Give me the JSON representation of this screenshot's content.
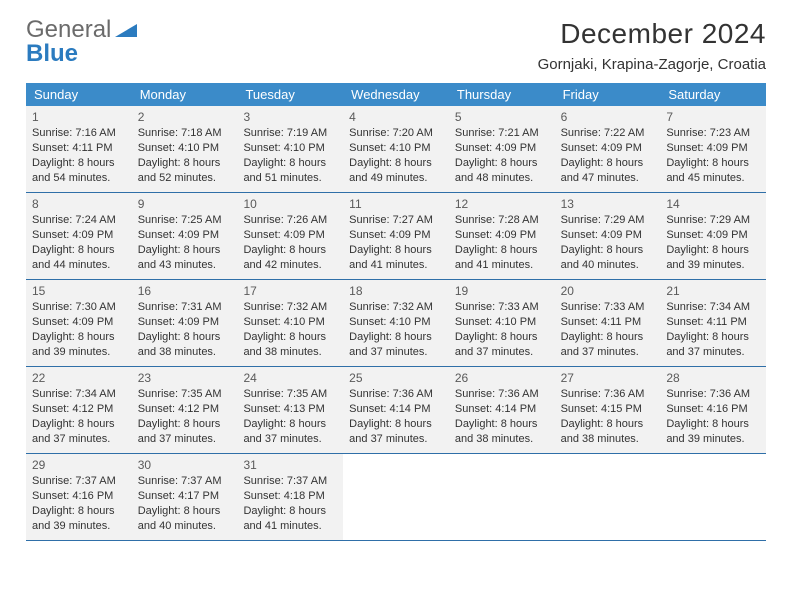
{
  "logo": {
    "part1": "General",
    "part2": "Blue"
  },
  "title": "December 2024",
  "location": "Gornjaki, Krapina-Zagorje, Croatia",
  "colors": {
    "header_bg": "#3b8bc9",
    "header_text": "#ffffff",
    "row_border": "#2f6fa8",
    "cell_bg": "#f2f2f2",
    "page_bg": "#ffffff",
    "logo_blue": "#2b7bbf",
    "logo_gray": "#6b6b6b"
  },
  "typography": {
    "title_fontsize": 28,
    "location_fontsize": 15,
    "weekday_fontsize": 13,
    "daynum_fontsize": 12,
    "body_fontsize": 11
  },
  "weekdays": [
    "Sunday",
    "Monday",
    "Tuesday",
    "Wednesday",
    "Thursday",
    "Friday",
    "Saturday"
  ],
  "weeks": [
    [
      {
        "n": "1",
        "sr": "Sunrise: 7:16 AM",
        "ss": "Sunset: 4:11 PM",
        "d1": "Daylight: 8 hours",
        "d2": "and 54 minutes."
      },
      {
        "n": "2",
        "sr": "Sunrise: 7:18 AM",
        "ss": "Sunset: 4:10 PM",
        "d1": "Daylight: 8 hours",
        "d2": "and 52 minutes."
      },
      {
        "n": "3",
        "sr": "Sunrise: 7:19 AM",
        "ss": "Sunset: 4:10 PM",
        "d1": "Daylight: 8 hours",
        "d2": "and 51 minutes."
      },
      {
        "n": "4",
        "sr": "Sunrise: 7:20 AM",
        "ss": "Sunset: 4:10 PM",
        "d1": "Daylight: 8 hours",
        "d2": "and 49 minutes."
      },
      {
        "n": "5",
        "sr": "Sunrise: 7:21 AM",
        "ss": "Sunset: 4:09 PM",
        "d1": "Daylight: 8 hours",
        "d2": "and 48 minutes."
      },
      {
        "n": "6",
        "sr": "Sunrise: 7:22 AM",
        "ss": "Sunset: 4:09 PM",
        "d1": "Daylight: 8 hours",
        "d2": "and 47 minutes."
      },
      {
        "n": "7",
        "sr": "Sunrise: 7:23 AM",
        "ss": "Sunset: 4:09 PM",
        "d1": "Daylight: 8 hours",
        "d2": "and 45 minutes."
      }
    ],
    [
      {
        "n": "8",
        "sr": "Sunrise: 7:24 AM",
        "ss": "Sunset: 4:09 PM",
        "d1": "Daylight: 8 hours",
        "d2": "and 44 minutes."
      },
      {
        "n": "9",
        "sr": "Sunrise: 7:25 AM",
        "ss": "Sunset: 4:09 PM",
        "d1": "Daylight: 8 hours",
        "d2": "and 43 minutes."
      },
      {
        "n": "10",
        "sr": "Sunrise: 7:26 AM",
        "ss": "Sunset: 4:09 PM",
        "d1": "Daylight: 8 hours",
        "d2": "and 42 minutes."
      },
      {
        "n": "11",
        "sr": "Sunrise: 7:27 AM",
        "ss": "Sunset: 4:09 PM",
        "d1": "Daylight: 8 hours",
        "d2": "and 41 minutes."
      },
      {
        "n": "12",
        "sr": "Sunrise: 7:28 AM",
        "ss": "Sunset: 4:09 PM",
        "d1": "Daylight: 8 hours",
        "d2": "and 41 minutes."
      },
      {
        "n": "13",
        "sr": "Sunrise: 7:29 AM",
        "ss": "Sunset: 4:09 PM",
        "d1": "Daylight: 8 hours",
        "d2": "and 40 minutes."
      },
      {
        "n": "14",
        "sr": "Sunrise: 7:29 AM",
        "ss": "Sunset: 4:09 PM",
        "d1": "Daylight: 8 hours",
        "d2": "and 39 minutes."
      }
    ],
    [
      {
        "n": "15",
        "sr": "Sunrise: 7:30 AM",
        "ss": "Sunset: 4:09 PM",
        "d1": "Daylight: 8 hours",
        "d2": "and 39 minutes."
      },
      {
        "n": "16",
        "sr": "Sunrise: 7:31 AM",
        "ss": "Sunset: 4:09 PM",
        "d1": "Daylight: 8 hours",
        "d2": "and 38 minutes."
      },
      {
        "n": "17",
        "sr": "Sunrise: 7:32 AM",
        "ss": "Sunset: 4:10 PM",
        "d1": "Daylight: 8 hours",
        "d2": "and 38 minutes."
      },
      {
        "n": "18",
        "sr": "Sunrise: 7:32 AM",
        "ss": "Sunset: 4:10 PM",
        "d1": "Daylight: 8 hours",
        "d2": "and 37 minutes."
      },
      {
        "n": "19",
        "sr": "Sunrise: 7:33 AM",
        "ss": "Sunset: 4:10 PM",
        "d1": "Daylight: 8 hours",
        "d2": "and 37 minutes."
      },
      {
        "n": "20",
        "sr": "Sunrise: 7:33 AM",
        "ss": "Sunset: 4:11 PM",
        "d1": "Daylight: 8 hours",
        "d2": "and 37 minutes."
      },
      {
        "n": "21",
        "sr": "Sunrise: 7:34 AM",
        "ss": "Sunset: 4:11 PM",
        "d1": "Daylight: 8 hours",
        "d2": "and 37 minutes."
      }
    ],
    [
      {
        "n": "22",
        "sr": "Sunrise: 7:34 AM",
        "ss": "Sunset: 4:12 PM",
        "d1": "Daylight: 8 hours",
        "d2": "and 37 minutes."
      },
      {
        "n": "23",
        "sr": "Sunrise: 7:35 AM",
        "ss": "Sunset: 4:12 PM",
        "d1": "Daylight: 8 hours",
        "d2": "and 37 minutes."
      },
      {
        "n": "24",
        "sr": "Sunrise: 7:35 AM",
        "ss": "Sunset: 4:13 PM",
        "d1": "Daylight: 8 hours",
        "d2": "and 37 minutes."
      },
      {
        "n": "25",
        "sr": "Sunrise: 7:36 AM",
        "ss": "Sunset: 4:14 PM",
        "d1": "Daylight: 8 hours",
        "d2": "and 37 minutes."
      },
      {
        "n": "26",
        "sr": "Sunrise: 7:36 AM",
        "ss": "Sunset: 4:14 PM",
        "d1": "Daylight: 8 hours",
        "d2": "and 38 minutes."
      },
      {
        "n": "27",
        "sr": "Sunrise: 7:36 AM",
        "ss": "Sunset: 4:15 PM",
        "d1": "Daylight: 8 hours",
        "d2": "and 38 minutes."
      },
      {
        "n": "28",
        "sr": "Sunrise: 7:36 AM",
        "ss": "Sunset: 4:16 PM",
        "d1": "Daylight: 8 hours",
        "d2": "and 39 minutes."
      }
    ],
    [
      {
        "n": "29",
        "sr": "Sunrise: 7:37 AM",
        "ss": "Sunset: 4:16 PM",
        "d1": "Daylight: 8 hours",
        "d2": "and 39 minutes."
      },
      {
        "n": "30",
        "sr": "Sunrise: 7:37 AM",
        "ss": "Sunset: 4:17 PM",
        "d1": "Daylight: 8 hours",
        "d2": "and 40 minutes."
      },
      {
        "n": "31",
        "sr": "Sunrise: 7:37 AM",
        "ss": "Sunset: 4:18 PM",
        "d1": "Daylight: 8 hours",
        "d2": "and 41 minutes."
      },
      null,
      null,
      null,
      null
    ]
  ]
}
